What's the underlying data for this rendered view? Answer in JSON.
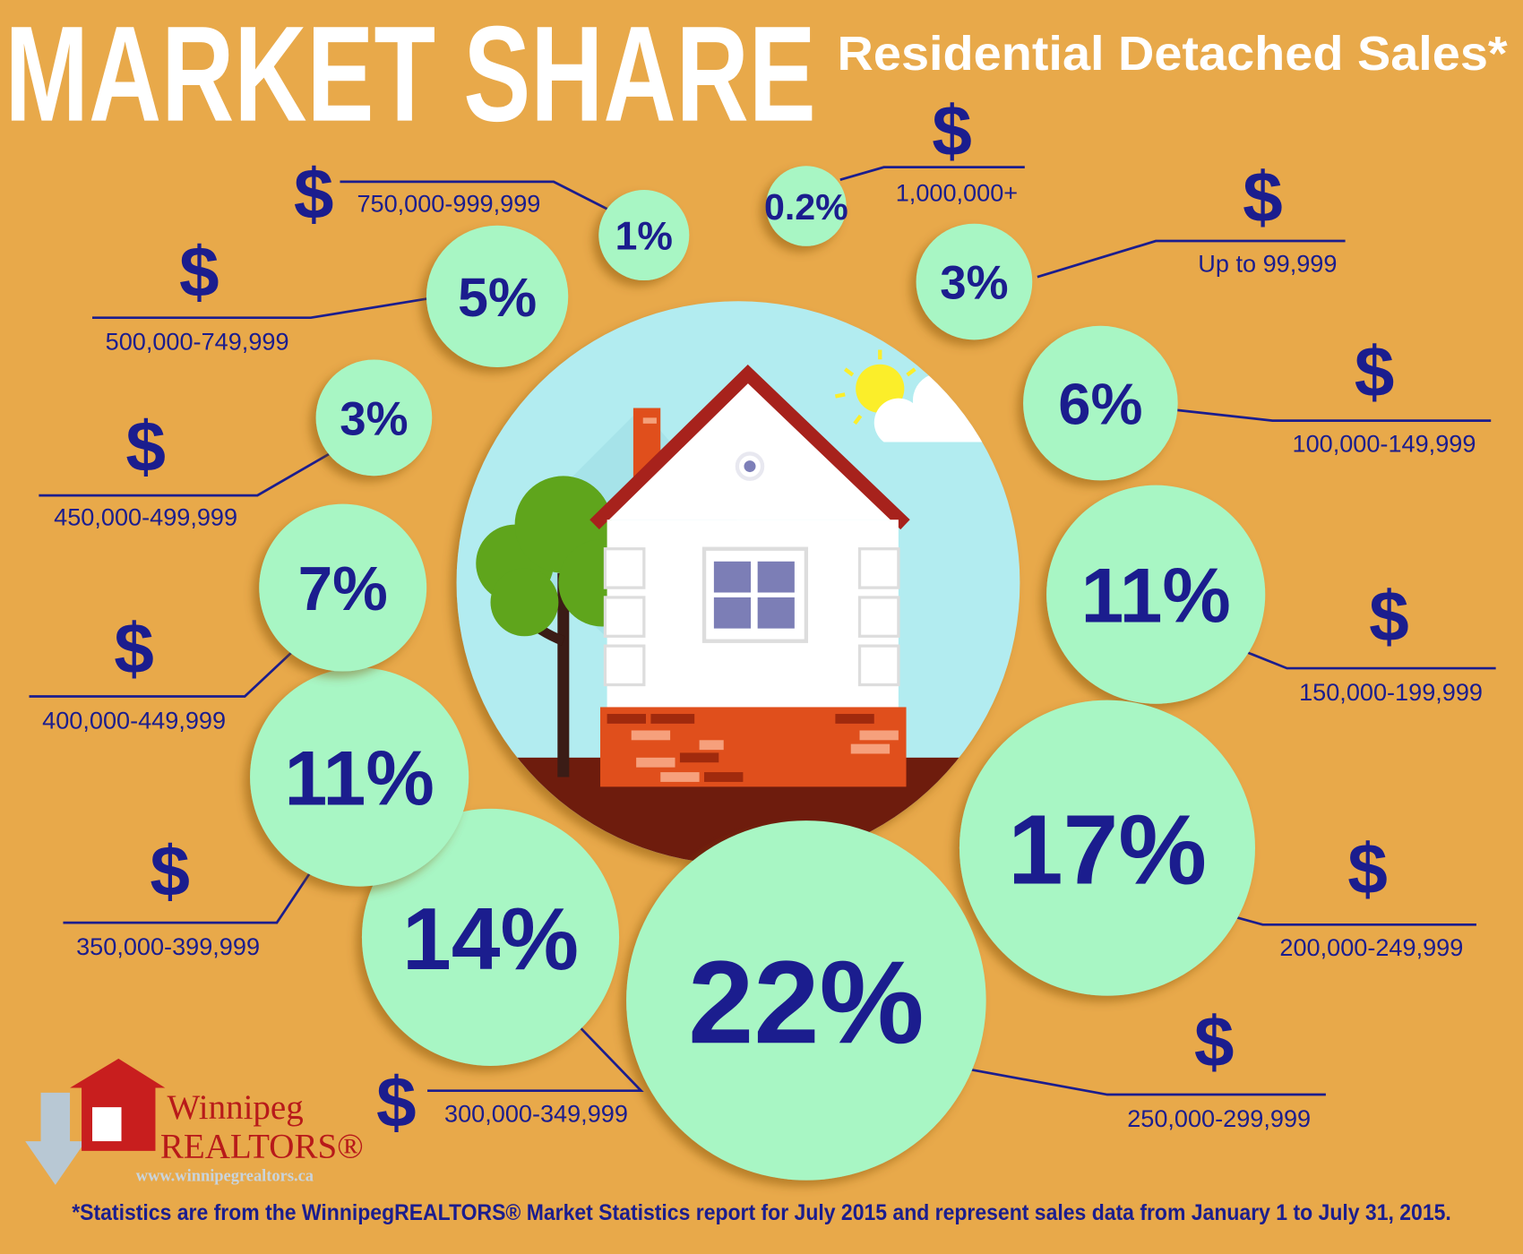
{
  "chart_data": {
    "type": "bubble",
    "title": "MARKET SHARE",
    "subtitle": "Residential Detached Sales*",
    "categories": [
      "Up to 99,999",
      "100,000-149,999",
      "150,000-199,999",
      "200,000-249,999",
      "250,000-299,999",
      "300,000-349,999",
      "350,000-399,999",
      "400,000-449,999",
      "450,000-499,999",
      "500,000-749,999",
      "750,000-999,999",
      "1,000,000+"
    ],
    "values": [
      3,
      6,
      11,
      17,
      22,
      14,
      11,
      7,
      3,
      5,
      1,
      0.2
    ],
    "value_labels": [
      "3%",
      "6%",
      "11%",
      "17%",
      "22%",
      "14%",
      "11%",
      "7%",
      "3%",
      "5%",
      "1%",
      "0.2%"
    ],
    "currency_symbol": "$",
    "color": "#a8f6c4",
    "label_color": "#1b1d8e"
  },
  "logo": {
    "name": "Winnipeg",
    "brand": "REALTORS®",
    "url": "www.winnipegrealtors.ca"
  },
  "footnote": "*Statistics are from the WinnipegREALTORS® Market Statistics report for July 2015 and represent sales data from January 1 to July 31, 2015."
}
